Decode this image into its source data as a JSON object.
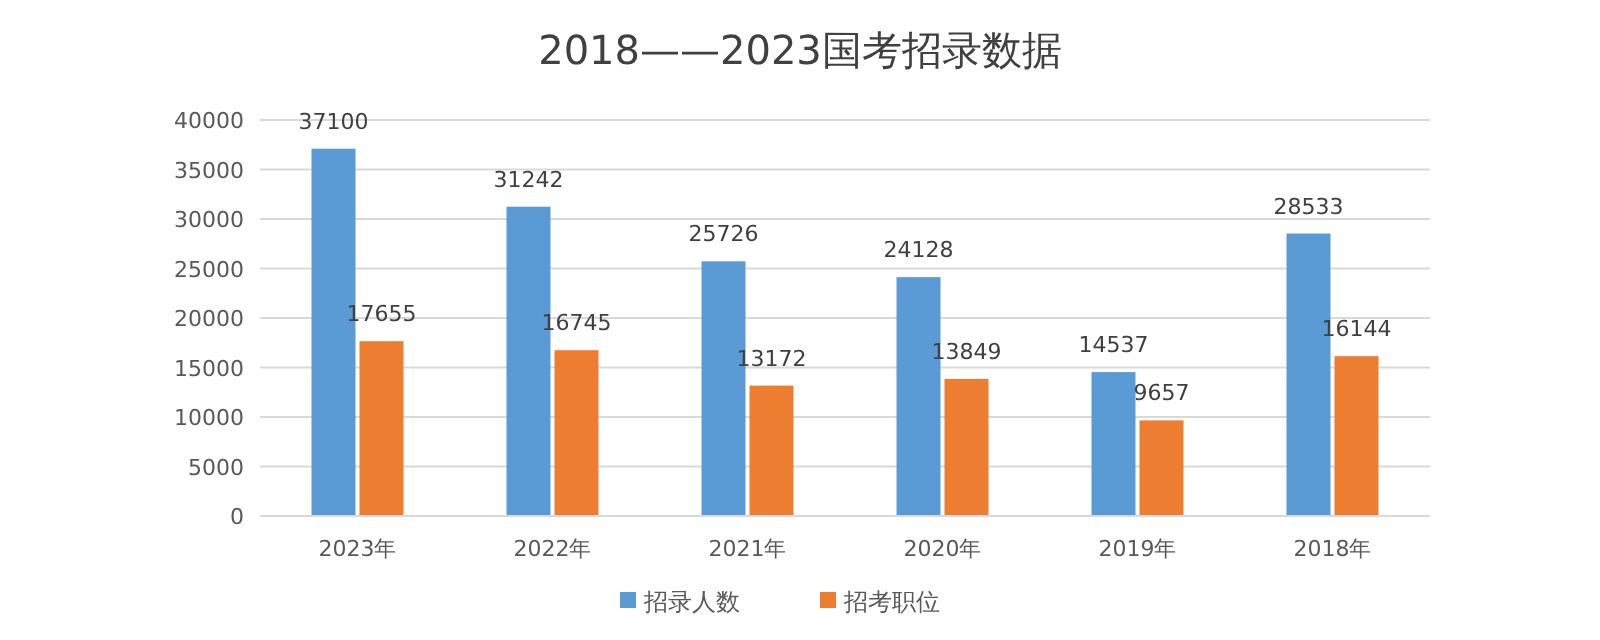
{
  "chart_data": {
    "type": "bar",
    "title": "2018——2023国考招录数据",
    "categories": [
      "2023年",
      "2022年",
      "2021年",
      "2020年",
      "2019年",
      "2018年"
    ],
    "series": [
      {
        "name": "招录人数",
        "color": "#5b9bd5",
        "values": [
          37100,
          31242,
          25726,
          24128,
          14537,
          28533
        ]
      },
      {
        "name": "招考职位",
        "color": "#ed7d31",
        "values": [
          17655,
          16745,
          13172,
          13849,
          9657,
          16144
        ]
      }
    ],
    "ylim": [
      0,
      40000
    ],
    "yticks": [
      0,
      5000,
      10000,
      15000,
      20000,
      25000,
      30000,
      35000,
      40000
    ],
    "grid": "y",
    "legend": "bottom",
    "data_labels": true
  }
}
